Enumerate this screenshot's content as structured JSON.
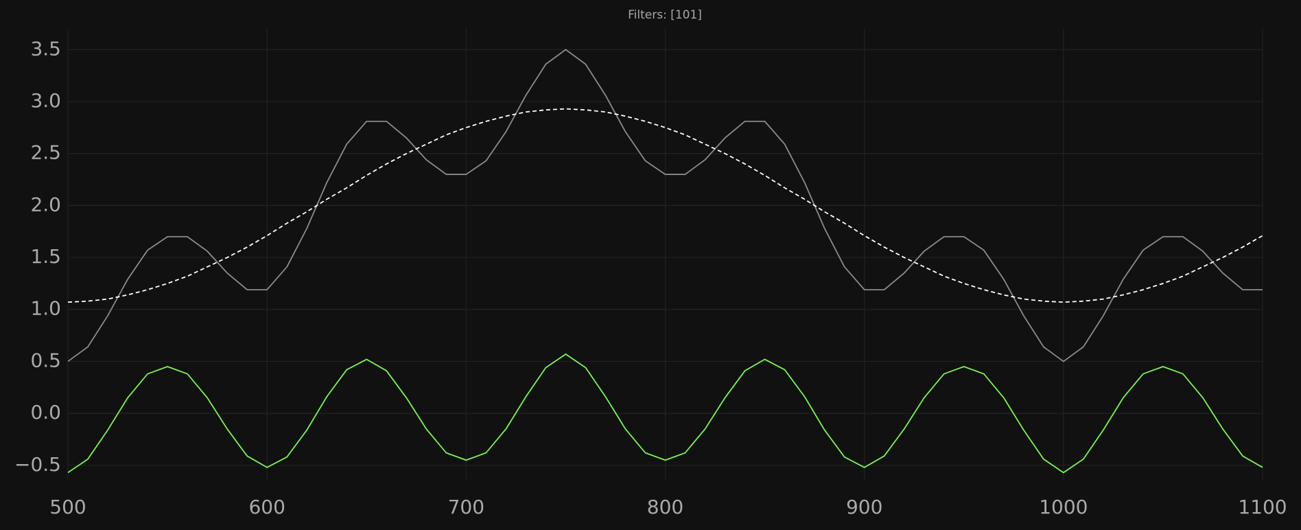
{
  "chart_data": {
    "type": "line",
    "title": "Filters: [101]",
    "x": [
      500,
      510,
      520,
      530,
      540,
      550,
      560,
      570,
      580,
      590,
      600,
      610,
      620,
      630,
      640,
      650,
      660,
      670,
      680,
      690,
      700,
      710,
      720,
      730,
      740,
      750,
      760,
      770,
      780,
      790,
      800,
      810,
      820,
      830,
      840,
      850,
      860,
      870,
      880,
      890,
      900,
      910,
      920,
      930,
      940,
      950,
      960,
      970,
      980,
      990,
      1000,
      1010,
      1020,
      1030,
      1040,
      1050,
      1060,
      1070,
      1080,
      1090,
      1100
    ],
    "series": [
      {
        "color": "#8c8c8c",
        "style": "solid",
        "values": [
          0.5,
          0.64,
          0.94,
          1.29,
          1.57,
          1.7,
          1.7,
          1.56,
          1.35,
          1.19,
          1.19,
          1.41,
          1.78,
          2.22,
          2.59,
          2.81,
          2.81,
          2.65,
          2.44,
          2.3,
          2.3,
          2.43,
          2.71,
          3.06,
          3.36,
          3.5,
          3.36,
          3.06,
          2.71,
          2.43,
          2.3,
          2.3,
          2.44,
          2.65,
          2.81,
          2.81,
          2.59,
          2.22,
          1.78,
          1.41,
          1.19,
          1.19,
          1.35,
          1.56,
          1.7,
          1.7,
          1.57,
          1.29,
          0.94,
          0.64,
          0.5,
          0.64,
          0.94,
          1.29,
          1.57,
          1.7,
          1.7,
          1.56,
          1.35,
          1.19,
          1.19
        ]
      },
      {
        "color": "#ffffff",
        "style": "dashed",
        "values": [
          1.07,
          1.08,
          1.1,
          1.14,
          1.19,
          1.25,
          1.32,
          1.41,
          1.5,
          1.6,
          1.71,
          1.83,
          1.94,
          2.06,
          2.17,
          2.29,
          2.4,
          2.5,
          2.59,
          2.68,
          2.75,
          2.81,
          2.86,
          2.9,
          2.92,
          2.93,
          2.92,
          2.9,
          2.86,
          2.81,
          2.75,
          2.68,
          2.59,
          2.5,
          2.4,
          2.29,
          2.17,
          2.06,
          1.94,
          1.83,
          1.71,
          1.6,
          1.5,
          1.41,
          1.32,
          1.25,
          1.19,
          1.14,
          1.1,
          1.08,
          1.07,
          1.08,
          1.1,
          1.14,
          1.19,
          1.25,
          1.32,
          1.41,
          1.5,
          1.6,
          1.71
        ]
      },
      {
        "color": "#7cf552",
        "style": "solid",
        "values": [
          -0.57,
          -0.44,
          -0.16,
          0.15,
          0.38,
          0.45,
          0.38,
          0.15,
          -0.15,
          -0.41,
          -0.52,
          -0.42,
          -0.16,
          0.16,
          0.42,
          0.52,
          0.41,
          0.15,
          -0.15,
          -0.38,
          -0.45,
          -0.38,
          -0.15,
          0.16,
          0.44,
          0.57,
          0.44,
          0.16,
          -0.15,
          -0.38,
          -0.45,
          -0.38,
          -0.15,
          0.15,
          0.41,
          0.52,
          0.42,
          0.16,
          -0.16,
          -0.42,
          -0.52,
          -0.41,
          -0.15,
          0.15,
          0.38,
          0.45,
          0.38,
          0.15,
          -0.16,
          -0.44,
          -0.57,
          -0.44,
          -0.16,
          0.15,
          0.38,
          0.45,
          0.38,
          0.15,
          -0.15,
          -0.41,
          -0.52
        ]
      }
    ],
    "xlim": [
      500,
      1100
    ],
    "ylim": [
      -0.64,
      3.7
    ],
    "xticks": [
      500,
      600,
      700,
      800,
      900,
      1000,
      1100
    ],
    "yticks": [
      {
        "value": -0.5,
        "label": "−0.5"
      },
      {
        "value": 0,
        "label": "0.0"
      },
      0.5,
      {
        "value": 1,
        "label": "1.0"
      },
      1.5,
      {
        "value": 2,
        "label": "2.0"
      },
      2.5,
      {
        "value": 3,
        "label": "3.0"
      },
      3.5
    ],
    "grid": true
  }
}
